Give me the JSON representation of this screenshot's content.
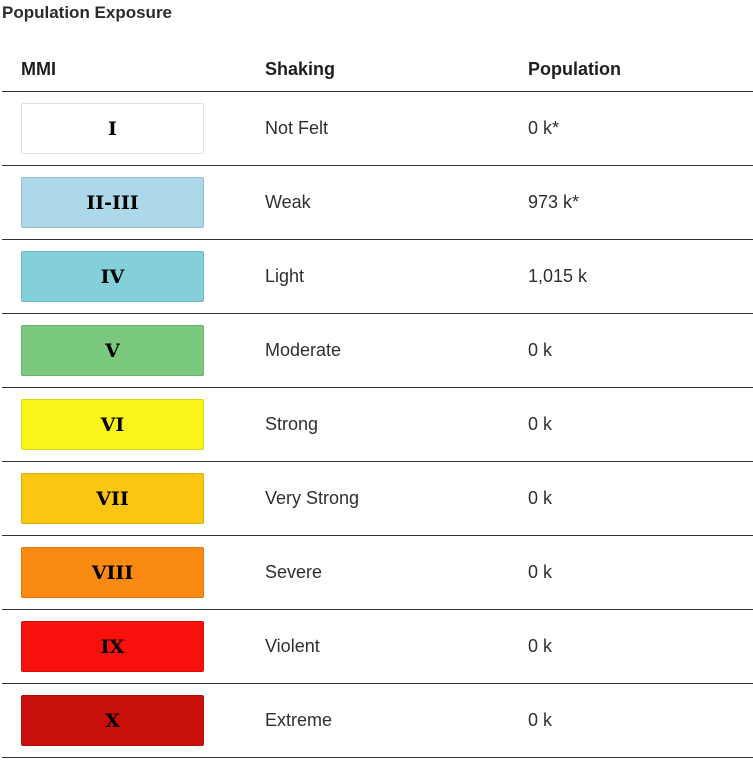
{
  "section_title": "Population Exposure",
  "headers": {
    "mmi": "MMI",
    "shaking": "Shaking",
    "population": "Population"
  },
  "rows": [
    {
      "mmi": "I",
      "shaking": "Not Felt",
      "population": "0 k*",
      "color": "#ffffff"
    },
    {
      "mmi": "II-III",
      "shaking": "Weak",
      "population": "973 k*",
      "color": "#acd8e9"
    },
    {
      "mmi": "IV",
      "shaking": "Light",
      "population": "1,015 k",
      "color": "#83d0da"
    },
    {
      "mmi": "V",
      "shaking": "Moderate",
      "population": "0 k",
      "color": "#7bc87f"
    },
    {
      "mmi": "VI",
      "shaking": "Strong",
      "population": "0 k",
      "color": "#f9f518"
    },
    {
      "mmi": "VII",
      "shaking": "Very Strong",
      "population": "0 k",
      "color": "#fac611"
    },
    {
      "mmi": "VIII",
      "shaking": "Severe",
      "population": "0 k",
      "color": "#fa8a11"
    },
    {
      "mmi": "IX",
      "shaking": "Violent",
      "population": "0 k",
      "color": "#f7100c"
    },
    {
      "mmi": "X",
      "shaking": "Extreme",
      "population": "0 k",
      "color": "#c80f0a"
    }
  ]
}
